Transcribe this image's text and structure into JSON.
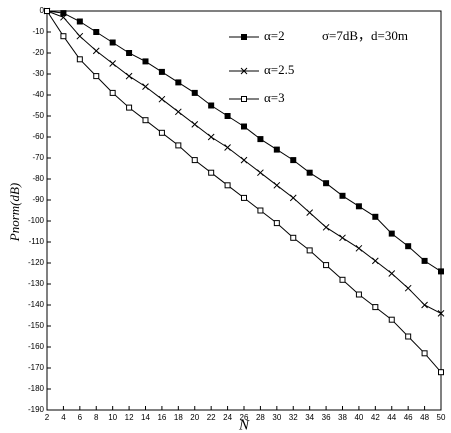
{
  "chart_data": {
    "type": "line",
    "x_label": "N",
    "y_label": "Pnorm(dB)",
    "annotation": "σ=7dB，d=30m",
    "x": [
      2,
      4,
      6,
      8,
      10,
      12,
      14,
      16,
      18,
      20,
      22,
      24,
      26,
      28,
      30,
      32,
      34,
      36,
      38,
      40,
      42,
      44,
      46,
      48,
      50
    ],
    "series": [
      {
        "name": "α=2",
        "color": "#000000",
        "marker": "filled-square",
        "values": [
          0,
          -1,
          -5,
          -10,
          -15,
          -20,
          -24,
          -29,
          -34,
          -39,
          -45,
          -50,
          -55,
          -61,
          -66,
          -71,
          -77,
          -82,
          -88,
          -93,
          -98,
          -106,
          -112,
          -119,
          -124
        ]
      },
      {
        "name": "α=2.5",
        "color": "#000000",
        "marker": "x",
        "values": [
          0,
          -3,
          -12,
          -19,
          -25,
          -31,
          -36,
          -42,
          -48,
          -54,
          -60,
          -65,
          -71,
          -77,
          -83,
          -89,
          -96,
          -103,
          -108,
          -113,
          -119,
          -125,
          -132,
          -140,
          -144
        ]
      },
      {
        "name": "α=3",
        "color": "#000000",
        "marker": "open-square",
        "values": [
          0,
          -12,
          -23,
          -31,
          -39,
          -46,
          -52,
          -58,
          -64,
          -71,
          -77,
          -83,
          -89,
          -95,
          -101,
          -108,
          -114,
          -121,
          -128,
          -135,
          -141,
          -147,
          -155,
          -163,
          -172
        ]
      }
    ],
    "xlim": [
      2,
      50
    ],
    "ylim": [
      -190,
      0
    ],
    "xticks": [
      2,
      4,
      6,
      8,
      10,
      12,
      14,
      16,
      18,
      20,
      22,
      24,
      26,
      28,
      30,
      32,
      34,
      36,
      38,
      40,
      42,
      44,
      46,
      48,
      50
    ],
    "yticks": [
      0,
      -10,
      -20,
      -30,
      -40,
      -50,
      -60,
      -70,
      -80,
      -90,
      -100,
      -110,
      -120,
      -130,
      -140,
      -150,
      -160,
      -170,
      -180,
      -190
    ],
    "grid": false
  }
}
